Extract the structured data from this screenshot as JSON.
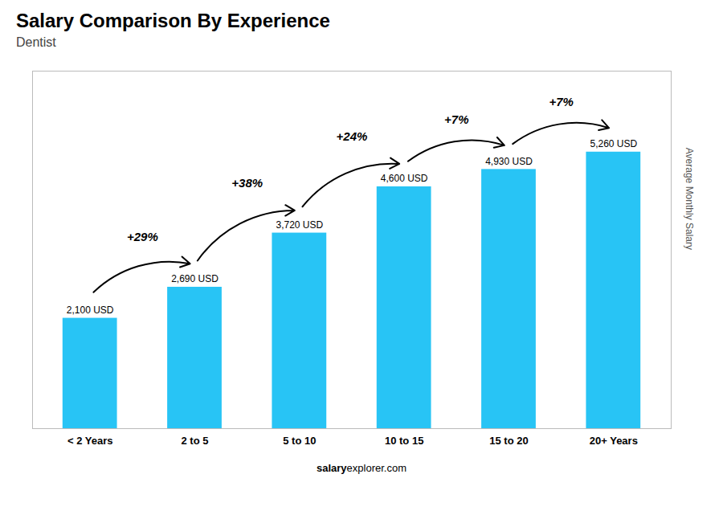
{
  "chart_data": {
    "type": "bar",
    "title": "Salary Comparison By Experience",
    "subtitle": "Dentist",
    "categories": [
      "< 2 Years",
      "2 to 5",
      "5 to 10",
      "10 to 15",
      "15 to 20",
      "20+ Years"
    ],
    "values": [
      2100,
      2690,
      3720,
      4600,
      4930,
      5260
    ],
    "value_labels": [
      "2,100 USD",
      "2,690 USD",
      "3,720 USD",
      "4,600 USD",
      "4,930 USD",
      "5,260 USD"
    ],
    "data_labels": true,
    "color": "#28c4f5",
    "ylim": [
      0,
      6800
    ],
    "tick_labels": "x",
    "grid": false,
    "ylabel": "Average Monthly Salary",
    "change_labels": [
      "+29%",
      "+38%",
      "+24%",
      "+7%",
      "+7%"
    ],
    "annotations": [
      "salary",
      "explorer.com"
    ]
  }
}
